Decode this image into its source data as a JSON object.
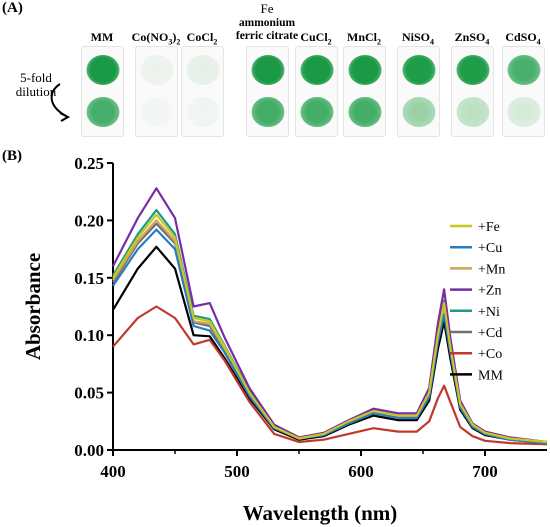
{
  "panel_a": {
    "label": "(A)",
    "dilution_label": "5-fold\ndilution",
    "strains": [
      {
        "name": "MM",
        "color_top": "#1a9a45",
        "color_bottom": "#25a050",
        "density_top": 1.0,
        "density_bottom": 0.85
      },
      {
        "name": "Co(NO3)2",
        "color_top": "#cfe3d2",
        "color_bottom": "#e3efe4",
        "density_top": 0.2,
        "density_bottom": 0.1
      },
      {
        "name": "CoCl2",
        "color_top": "#bcdcc2",
        "color_bottom": "#dbece0",
        "density_top": 0.3,
        "density_bottom": 0.15
      },
      {
        "name": "ammonium\nferric citrate",
        "header": "Fe",
        "color_top": "#1a9a45",
        "color_bottom": "#24a04e",
        "density_top": 1.0,
        "density_bottom": 0.85
      },
      {
        "name": "CuCl2",
        "color_top": "#1a9a45",
        "color_bottom": "#24a04e",
        "density_top": 1.0,
        "density_bottom": 0.85
      },
      {
        "name": "MnCl2",
        "color_top": "#1a9a45",
        "color_bottom": "#24a04e",
        "density_top": 1.0,
        "density_bottom": 0.85
      },
      {
        "name": "NiSO4",
        "color_top": "#1f9d49",
        "color_bottom": "#58b56f",
        "density_top": 1.0,
        "density_bottom": 0.6
      },
      {
        "name": "ZnSO4",
        "color_top": "#1f9d49",
        "color_bottom": "#7bc58a",
        "density_top": 1.0,
        "density_bottom": 0.5
      },
      {
        "name": "CdSO4",
        "color_top": "#2aa356",
        "color_bottom": "#9fd3a9",
        "density_top": 0.85,
        "density_bottom": 0.4
      }
    ]
  },
  "panel_b": {
    "label": "(B)"
  },
  "chart_data": {
    "type": "line",
    "title": "",
    "xlabel": "Wavelength (nm)",
    "ylabel": "Absorbance",
    "xlim": [
      400,
      750
    ],
    "ylim": [
      0.0,
      0.25
    ],
    "x_ticks": [
      "400",
      "500",
      "600",
      "700"
    ],
    "y_ticks": [
      "0.00",
      "0.05",
      "0.10",
      "0.15",
      "0.20",
      "0.25"
    ],
    "grid": false,
    "legend_position": "right",
    "series": [
      {
        "name": "+Fe",
        "color": "#c8c81e",
        "x": [
          400,
          420,
          435,
          450,
          465,
          478,
          490,
          510,
          530,
          550,
          570,
          590,
          610,
          630,
          645,
          655,
          662,
          667,
          672,
          680,
          690,
          700,
          720,
          750
        ],
        "y": [
          0.15,
          0.185,
          0.205,
          0.185,
          0.115,
          0.112,
          0.09,
          0.05,
          0.02,
          0.01,
          0.014,
          0.025,
          0.034,
          0.03,
          0.03,
          0.05,
          0.1,
          0.128,
          0.09,
          0.04,
          0.022,
          0.015,
          0.01,
          0.007
        ]
      },
      {
        "name": "+Cu",
        "color": "#2a7bbf",
        "x": [
          400,
          420,
          435,
          450,
          465,
          478,
          490,
          510,
          530,
          550,
          570,
          590,
          610,
          630,
          645,
          655,
          662,
          667,
          672,
          680,
          690,
          700,
          720,
          750
        ],
        "y": [
          0.143,
          0.175,
          0.192,
          0.175,
          0.108,
          0.104,
          0.085,
          0.047,
          0.019,
          0.01,
          0.013,
          0.023,
          0.032,
          0.028,
          0.028,
          0.046,
          0.094,
          0.118,
          0.085,
          0.037,
          0.02,
          0.014,
          0.009,
          0.006
        ]
      },
      {
        "name": "+Mn",
        "color": "#d1a257",
        "x": [
          400,
          420,
          435,
          450,
          465,
          478,
          490,
          510,
          530,
          550,
          570,
          590,
          610,
          630,
          645,
          655,
          662,
          667,
          672,
          680,
          690,
          700,
          720,
          750
        ],
        "y": [
          0.148,
          0.182,
          0.2,
          0.182,
          0.112,
          0.11,
          0.088,
          0.049,
          0.02,
          0.01,
          0.014,
          0.024,
          0.033,
          0.029,
          0.029,
          0.048,
          0.098,
          0.124,
          0.088,
          0.039,
          0.021,
          0.015,
          0.01,
          0.007
        ]
      },
      {
        "name": "+Zn",
        "color": "#7a2ba8",
        "x": [
          400,
          420,
          435,
          450,
          465,
          478,
          490,
          510,
          530,
          550,
          570,
          590,
          610,
          630,
          645,
          655,
          662,
          667,
          672,
          680,
          690,
          700,
          720,
          750
        ],
        "y": [
          0.16,
          0.202,
          0.228,
          0.202,
          0.125,
          0.128,
          0.098,
          0.054,
          0.022,
          0.011,
          0.015,
          0.026,
          0.036,
          0.032,
          0.032,
          0.054,
          0.11,
          0.14,
          0.098,
          0.043,
          0.023,
          0.016,
          0.011,
          0.007
        ]
      },
      {
        "name": "+Ni",
        "color": "#1e9a8a",
        "x": [
          400,
          420,
          435,
          450,
          465,
          478,
          490,
          510,
          530,
          550,
          570,
          590,
          610,
          630,
          645,
          655,
          662,
          667,
          672,
          680,
          690,
          700,
          720,
          750
        ],
        "y": [
          0.152,
          0.188,
          0.209,
          0.188,
          0.117,
          0.114,
          0.091,
          0.051,
          0.021,
          0.01,
          0.014,
          0.025,
          0.034,
          0.03,
          0.03,
          0.05,
          0.102,
          0.13,
          0.092,
          0.041,
          0.022,
          0.015,
          0.01,
          0.007
        ]
      },
      {
        "name": "+Cd",
        "color": "#707070",
        "x": [
          400,
          420,
          435,
          450,
          465,
          478,
          490,
          510,
          530,
          550,
          570,
          590,
          610,
          630,
          645,
          655,
          662,
          667,
          672,
          680,
          690,
          700,
          720,
          750
        ],
        "y": [
          0.146,
          0.18,
          0.197,
          0.18,
          0.111,
          0.108,
          0.087,
          0.048,
          0.02,
          0.01,
          0.013,
          0.024,
          0.033,
          0.029,
          0.029,
          0.047,
          0.096,
          0.121,
          0.087,
          0.038,
          0.021,
          0.014,
          0.009,
          0.006
        ]
      },
      {
        "name": "+Co",
        "color": "#c0392b",
        "x": [
          400,
          420,
          435,
          450,
          465,
          478,
          490,
          510,
          530,
          550,
          570,
          590,
          610,
          630,
          645,
          655,
          662,
          667,
          672,
          680,
          690,
          700,
          720,
          750
        ],
        "y": [
          0.09,
          0.115,
          0.125,
          0.115,
          0.092,
          0.096,
          0.078,
          0.042,
          0.014,
          0.007,
          0.009,
          0.014,
          0.019,
          0.016,
          0.016,
          0.025,
          0.045,
          0.056,
          0.042,
          0.02,
          0.012,
          0.008,
          0.006,
          0.005
        ]
      },
      {
        "name": "MM",
        "color": "#000000",
        "x": [
          400,
          420,
          435,
          450,
          465,
          478,
          490,
          510,
          530,
          550,
          570,
          590,
          610,
          630,
          645,
          655,
          662,
          667,
          672,
          680,
          690,
          700,
          720,
          750
        ],
        "y": [
          0.122,
          0.158,
          0.177,
          0.158,
          0.1,
          0.099,
          0.08,
          0.045,
          0.018,
          0.009,
          0.012,
          0.022,
          0.03,
          0.026,
          0.026,
          0.043,
          0.088,
          0.112,
          0.08,
          0.035,
          0.019,
          0.013,
          0.009,
          0.006
        ]
      }
    ]
  }
}
